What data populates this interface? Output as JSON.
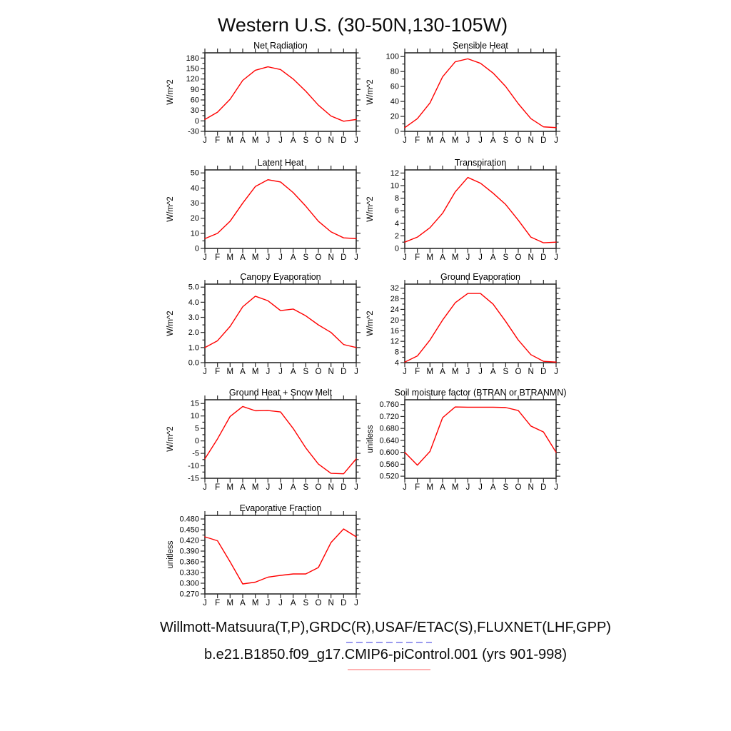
{
  "title": "Western U.S. (30-50N,130-105W)",
  "footer": {
    "obs_line": "Willmott-Matsuura(T,P),GRDC(R),USAF/ETAC(S),FLUXNET(LHF,GPP)",
    "model_line": "b.e21.B1850.f09_g17.CMIP6-piControl.001 (yrs 901-998)"
  },
  "colors": {
    "axis": "#2b2b2b",
    "series_line": "#ff0000",
    "obs_key_dashed": "#9a9aee",
    "model_key_solid": "#ffb2b2",
    "background": "#ffffff"
  },
  "chart_data": {
    "type": "line",
    "layout": "5x2 grid of monthly-climatology subplots, grid off, no in-plot legend",
    "line_color": "#ff0000",
    "charts": [
      {
        "title": "Net Radiation",
        "ylabel": "W/m^2",
        "categories": [
          "J",
          "F",
          "M",
          "A",
          "M",
          "J",
          "J",
          "A",
          "S",
          "O",
          "N",
          "D",
          "J"
        ],
        "values": [
          4,
          25,
          62,
          116,
          145,
          155,
          147,
          120,
          85,
          45,
          14,
          -1,
          4
        ],
        "yticks": {
          "start": -30,
          "end": 180,
          "step": 30,
          "decimals": 0
        },
        "ylim": [
          -30,
          195
        ]
      },
      {
        "title": "Sensible Heat",
        "ylabel": "W/m^2",
        "categories": [
          "J",
          "F",
          "M",
          "A",
          "M",
          "J",
          "J",
          "A",
          "S",
          "O",
          "N",
          "D",
          "J"
        ],
        "values": [
          5,
          17,
          38,
          73,
          93,
          97,
          91,
          78,
          60,
          37,
          17,
          6,
          5
        ],
        "yticks": {
          "start": 0,
          "end": 100,
          "step": 20,
          "decimals": 0
        },
        "ylim": [
          0,
          105
        ]
      },
      {
        "title": "Latent Heat",
        "ylabel": "W/m^2",
        "categories": [
          "J",
          "F",
          "M",
          "A",
          "M",
          "J",
          "J",
          "A",
          "S",
          "O",
          "N",
          "D",
          "J"
        ],
        "values": [
          6.5,
          10,
          18,
          30,
          41,
          45.5,
          44,
          37,
          28,
          18,
          11,
          7,
          6.5
        ],
        "yticks": {
          "start": 0,
          "end": 50,
          "step": 10,
          "decimals": 0
        },
        "ylim": [
          0,
          52
        ]
      },
      {
        "title": "Transpiration",
        "ylabel": "W/m^2",
        "categories": [
          "J",
          "F",
          "M",
          "A",
          "M",
          "J",
          "J",
          "A",
          "S",
          "O",
          "N",
          "D",
          "J"
        ],
        "values": [
          1.0,
          1.8,
          3.3,
          5.6,
          9.0,
          11.3,
          10.4,
          8.8,
          7.0,
          4.5,
          1.8,
          0.9,
          1.0
        ],
        "yticks": {
          "start": 0,
          "end": 12,
          "step": 2,
          "decimals": 0
        },
        "ylim": [
          0,
          12.5
        ]
      },
      {
        "title": "Canopy Evaporation",
        "ylabel": "W/m^2",
        "categories": [
          "J",
          "F",
          "M",
          "A",
          "M",
          "J",
          "J",
          "A",
          "S",
          "O",
          "N",
          "D",
          "J"
        ],
        "values": [
          1.0,
          1.45,
          2.4,
          3.7,
          4.4,
          4.1,
          3.45,
          3.55,
          3.1,
          2.5,
          2.0,
          1.2,
          1.0
        ],
        "yticks": {
          "start": 0,
          "end": 5,
          "step": 1,
          "decimals": 1
        },
        "ylim": [
          0,
          5.2
        ]
      },
      {
        "title": "Ground Evaporation",
        "ylabel": "W/m^2",
        "categories": [
          "J",
          "F",
          "M",
          "A",
          "M",
          "J",
          "J",
          "A",
          "S",
          "O",
          "N",
          "D",
          "J"
        ],
        "values": [
          4.2,
          6.5,
          12.5,
          20,
          26.5,
          30,
          30,
          26,
          19.5,
          12.5,
          7,
          4.5,
          4.2
        ],
        "yticks": {
          "start": 4,
          "end": 32,
          "step": 4,
          "decimals": 0
        },
        "ylim": [
          4,
          33.5
        ]
      },
      {
        "title": "Ground Heat + Snow Melt",
        "ylabel": "W/m^2",
        "categories": [
          "J",
          "F",
          "M",
          "A",
          "M",
          "J",
          "J",
          "A",
          "S",
          "O",
          "N",
          "D",
          "J"
        ],
        "values": [
          -7.2,
          0.8,
          9.8,
          13.8,
          12.1,
          12.2,
          11.6,
          5.0,
          -2.8,
          -9.3,
          -13.0,
          -13.2,
          -7.2
        ],
        "yticks": {
          "start": -15,
          "end": 15,
          "step": 5,
          "decimals": 0
        },
        "ylim": [
          -15,
          16.5
        ]
      },
      {
        "title": "Soil moisture factor (BTRAN or BTRANMN)",
        "ylabel": "unitless",
        "categories": [
          "J",
          "F",
          "M",
          "A",
          "M",
          "J",
          "J",
          "A",
          "S",
          "O",
          "N",
          "D",
          "J"
        ],
        "values": [
          0.6,
          0.557,
          0.603,
          0.716,
          0.752,
          0.751,
          0.751,
          0.751,
          0.75,
          0.74,
          0.688,
          0.668,
          0.6
        ],
        "yticks": {
          "start": 0.52,
          "end": 0.76,
          "step": 0.04,
          "decimals": 3
        },
        "ylim": [
          0.513,
          0.776
        ]
      },
      {
        "title": "Evaporative Fraction",
        "ylabel": "unitless",
        "categories": [
          "J",
          "F",
          "M",
          "A",
          "M",
          "J",
          "J",
          "A",
          "S",
          "O",
          "N",
          "D",
          "J"
        ],
        "values": [
          0.43,
          0.419,
          0.36,
          0.298,
          0.303,
          0.317,
          0.322,
          0.326,
          0.326,
          0.344,
          0.414,
          0.452,
          0.43
        ],
        "yticks": {
          "start": 0.27,
          "end": 0.48,
          "step": 0.03,
          "decimals": 3
        },
        "ylim": [
          0.27,
          0.49
        ]
      }
    ]
  }
}
